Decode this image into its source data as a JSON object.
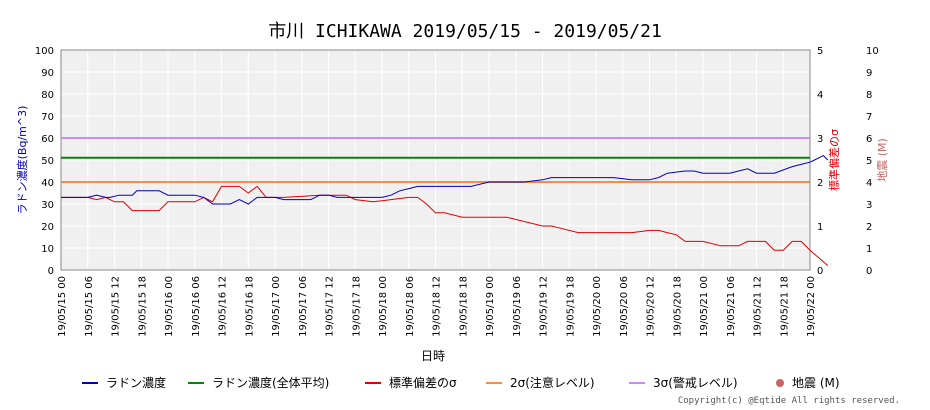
{
  "chart_data": {
    "type": "line",
    "title": "市川 ICHIKAWA 2019/05/15 - 2019/05/21",
    "xlabel": "日時",
    "ylabel_left": "ラドン濃度(Bq/m^3)",
    "ylabel_right1": "標準偏差のσ",
    "ylabel_right2": "地震 (M)",
    "ylim_left": [
      0,
      100
    ],
    "ylim_right1": [
      0,
      5
    ],
    "ylim_right2": [
      0,
      10
    ],
    "y_ticks_left": [
      "0",
      "10",
      "20",
      "30",
      "40",
      "50",
      "60",
      "70",
      "80",
      "90",
      "100"
    ],
    "y_ticks_right1": [
      "0",
      "1",
      "2",
      "3",
      "4",
      "5"
    ],
    "y_ticks_right2": [
      "0",
      "1",
      "2",
      "3",
      "4",
      "5",
      "6",
      "7",
      "8",
      "9",
      "10"
    ],
    "x_ticks": [
      "19/05/15 00",
      "19/05/15 06",
      "19/05/15 12",
      "19/05/15 18",
      "19/05/16 00",
      "19/05/16 06",
      "19/05/16 12",
      "19/05/16 18",
      "19/05/17 00",
      "19/05/17 06",
      "19/05/17 12",
      "19/05/17 18",
      "19/05/18 00",
      "19/05/18 06",
      "19/05/18 12",
      "19/05/18 18",
      "19/05/19 00",
      "19/05/19 06",
      "19/05/19 12",
      "19/05/19 18",
      "19/05/20 00",
      "19/05/20 06",
      "19/05/20 12",
      "19/05/20 18",
      "19/05/21 00",
      "19/05/21 06",
      "19/05/21 12",
      "19/05/21 18",
      "19/05/22 00"
    ],
    "grid": true,
    "legend_position": "bottom",
    "series": [
      {
        "name": "ラドン濃度",
        "color": "#0000bb",
        "axis": "left",
        "x_hours": [
          0,
          4,
          6,
          8,
          10,
          11,
          13,
          16,
          17,
          22,
          24,
          30,
          32,
          34,
          36,
          38,
          40,
          42,
          44,
          46,
          48,
          50,
          52,
          54,
          56,
          58,
          60,
          62,
          64,
          66,
          68,
          70,
          72,
          74,
          76,
          78,
          80,
          82,
          84,
          86,
          88,
          92,
          96,
          100,
          104,
          108,
          110,
          112,
          116,
          120,
          124,
          128,
          132,
          134,
          136,
          140,
          142,
          144,
          148,
          150,
          154,
          156,
          160,
          164,
          166,
          168,
          169,
          170,
          171,
          172
        ],
        "values": [
          33,
          33,
          33,
          34,
          33,
          33,
          34,
          34,
          36,
          36,
          34,
          34,
          33,
          30,
          30,
          30,
          32,
          30,
          33,
          33,
          33,
          32,
          32,
          32,
          32,
          34,
          34,
          33,
          33,
          33,
          33,
          33,
          33,
          34,
          36,
          37,
          38,
          38,
          38,
          38,
          38,
          38,
          40,
          40,
          40,
          41,
          42,
          42,
          42,
          42,
          42,
          41,
          41,
          42,
          44,
          45,
          45,
          44,
          44,
          44,
          46,
          44,
          44,
          47,
          48,
          49,
          50,
          51,
          52,
          50
        ]
      },
      {
        "name": "ラドン濃度(全体平均)",
        "color": "#008800",
        "axis": "left",
        "values": [
          51,
          51
        ]
      },
      {
        "name": "標準偏差のσ",
        "color": "#dd0000",
        "axis": "left",
        "x_hours": [
          0,
          4,
          6,
          8,
          10,
          12,
          14,
          16,
          18,
          22,
          24,
          30,
          32,
          34,
          36,
          40,
          42,
          44,
          46,
          48,
          50,
          58,
          60,
          62,
          64,
          66,
          70,
          78,
          80,
          82,
          84,
          86,
          90,
          96,
          100,
          108,
          110,
          112,
          116,
          124,
          128,
          132,
          134,
          136,
          138,
          140,
          144,
          148,
          150,
          152,
          154,
          156,
          158,
          160,
          162,
          164,
          166,
          168,
          172
        ],
        "values": [
          33,
          33,
          33,
          32,
          33,
          31,
          31,
          27,
          27,
          27,
          31,
          31,
          33,
          31,
          38,
          38,
          35,
          38,
          33,
          33,
          33,
          34,
          34,
          34,
          34,
          32,
          31,
          33,
          33,
          30,
          26,
          26,
          24,
          24,
          24,
          20,
          20,
          19,
          17,
          17,
          17,
          18,
          18,
          17,
          16,
          13,
          13,
          11,
          11,
          11,
          13,
          13,
          13,
          9,
          9,
          13,
          13,
          9,
          2
        ]
      },
      {
        "name": "2σ(注意レベル)",
        "color": "#ff8c3c",
        "axis": "left",
        "values": [
          40,
          40
        ]
      },
      {
        "name": "3σ(警戒レベル)",
        "color": "#c88cff",
        "axis": "left",
        "values": [
          60,
          60
        ]
      },
      {
        "name": "地震 (M)",
        "color": "#c86464",
        "axis": "right2",
        "values": []
      }
    ]
  },
  "legend": [
    {
      "label": "ラドン濃度",
      "color": "#0000bb",
      "kind": "line"
    },
    {
      "label": "ラドン濃度(全体平均)",
      "color": "#008800",
      "kind": "line"
    },
    {
      "label": "標準偏差のσ",
      "color": "#dd0000",
      "kind": "line"
    },
    {
      "label": "2σ(注意レベル)",
      "color": "#ff8c3c",
      "kind": "line"
    },
    {
      "label": "3σ(警戒レベル)",
      "color": "#c88cff",
      "kind": "line"
    },
    {
      "label": "地震 (M)",
      "color": "#c86464",
      "kind": "dot"
    }
  ],
  "copyright": "Copyright(c) @Eqtide All rights reserved."
}
